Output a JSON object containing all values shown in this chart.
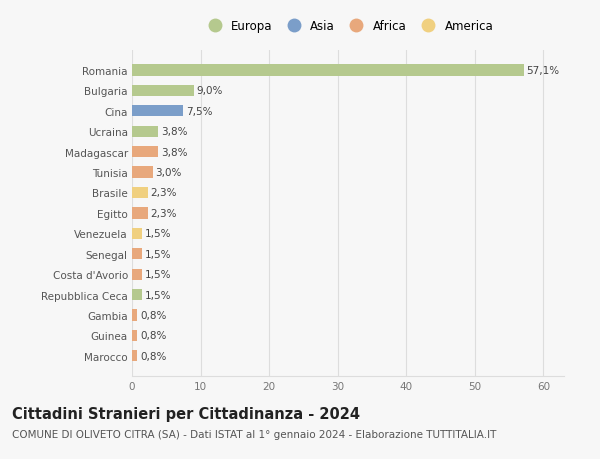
{
  "countries": [
    "Romania",
    "Bulgaria",
    "Cina",
    "Ucraina",
    "Madagascar",
    "Tunisia",
    "Brasile",
    "Egitto",
    "Venezuela",
    "Senegal",
    "Costa d'Avorio",
    "Repubblica Ceca",
    "Gambia",
    "Guinea",
    "Marocco"
  ],
  "values": [
    57.1,
    9.0,
    7.5,
    3.8,
    3.8,
    3.0,
    2.3,
    2.3,
    1.5,
    1.5,
    1.5,
    1.5,
    0.8,
    0.8,
    0.8
  ],
  "labels": [
    "57,1%",
    "9,0%",
    "7,5%",
    "3,8%",
    "3,8%",
    "3,0%",
    "2,3%",
    "2,3%",
    "1,5%",
    "1,5%",
    "1,5%",
    "1,5%",
    "0,8%",
    "0,8%",
    "0,8%"
  ],
  "continents": [
    "Europa",
    "Europa",
    "Asia",
    "Europa",
    "Africa",
    "Africa",
    "America",
    "Africa",
    "America",
    "Africa",
    "Africa",
    "Europa",
    "Africa",
    "Africa",
    "Africa"
  ],
  "continent_colors": {
    "Europa": "#b5c98e",
    "Asia": "#7b9ec9",
    "Africa": "#e8a87c",
    "America": "#f0d080"
  },
  "legend_order": [
    "Europa",
    "Asia",
    "Africa",
    "America"
  ],
  "title": "Cittadini Stranieri per Cittadinanza - 2024",
  "subtitle": "COMUNE DI OLIVETO CITRA (SA) - Dati ISTAT al 1° gennaio 2024 - Elaborazione TUTTITALIA.IT",
  "xlim": [
    0,
    63
  ],
  "xticks": [
    0,
    10,
    20,
    30,
    40,
    50,
    60
  ],
  "background_color": "#f7f7f7",
  "grid_color": "#dddddd",
  "bar_height": 0.55,
  "title_fontsize": 10.5,
  "subtitle_fontsize": 7.5,
  "label_fontsize": 7.5,
  "tick_fontsize": 7.5,
  "legend_fontsize": 8.5
}
